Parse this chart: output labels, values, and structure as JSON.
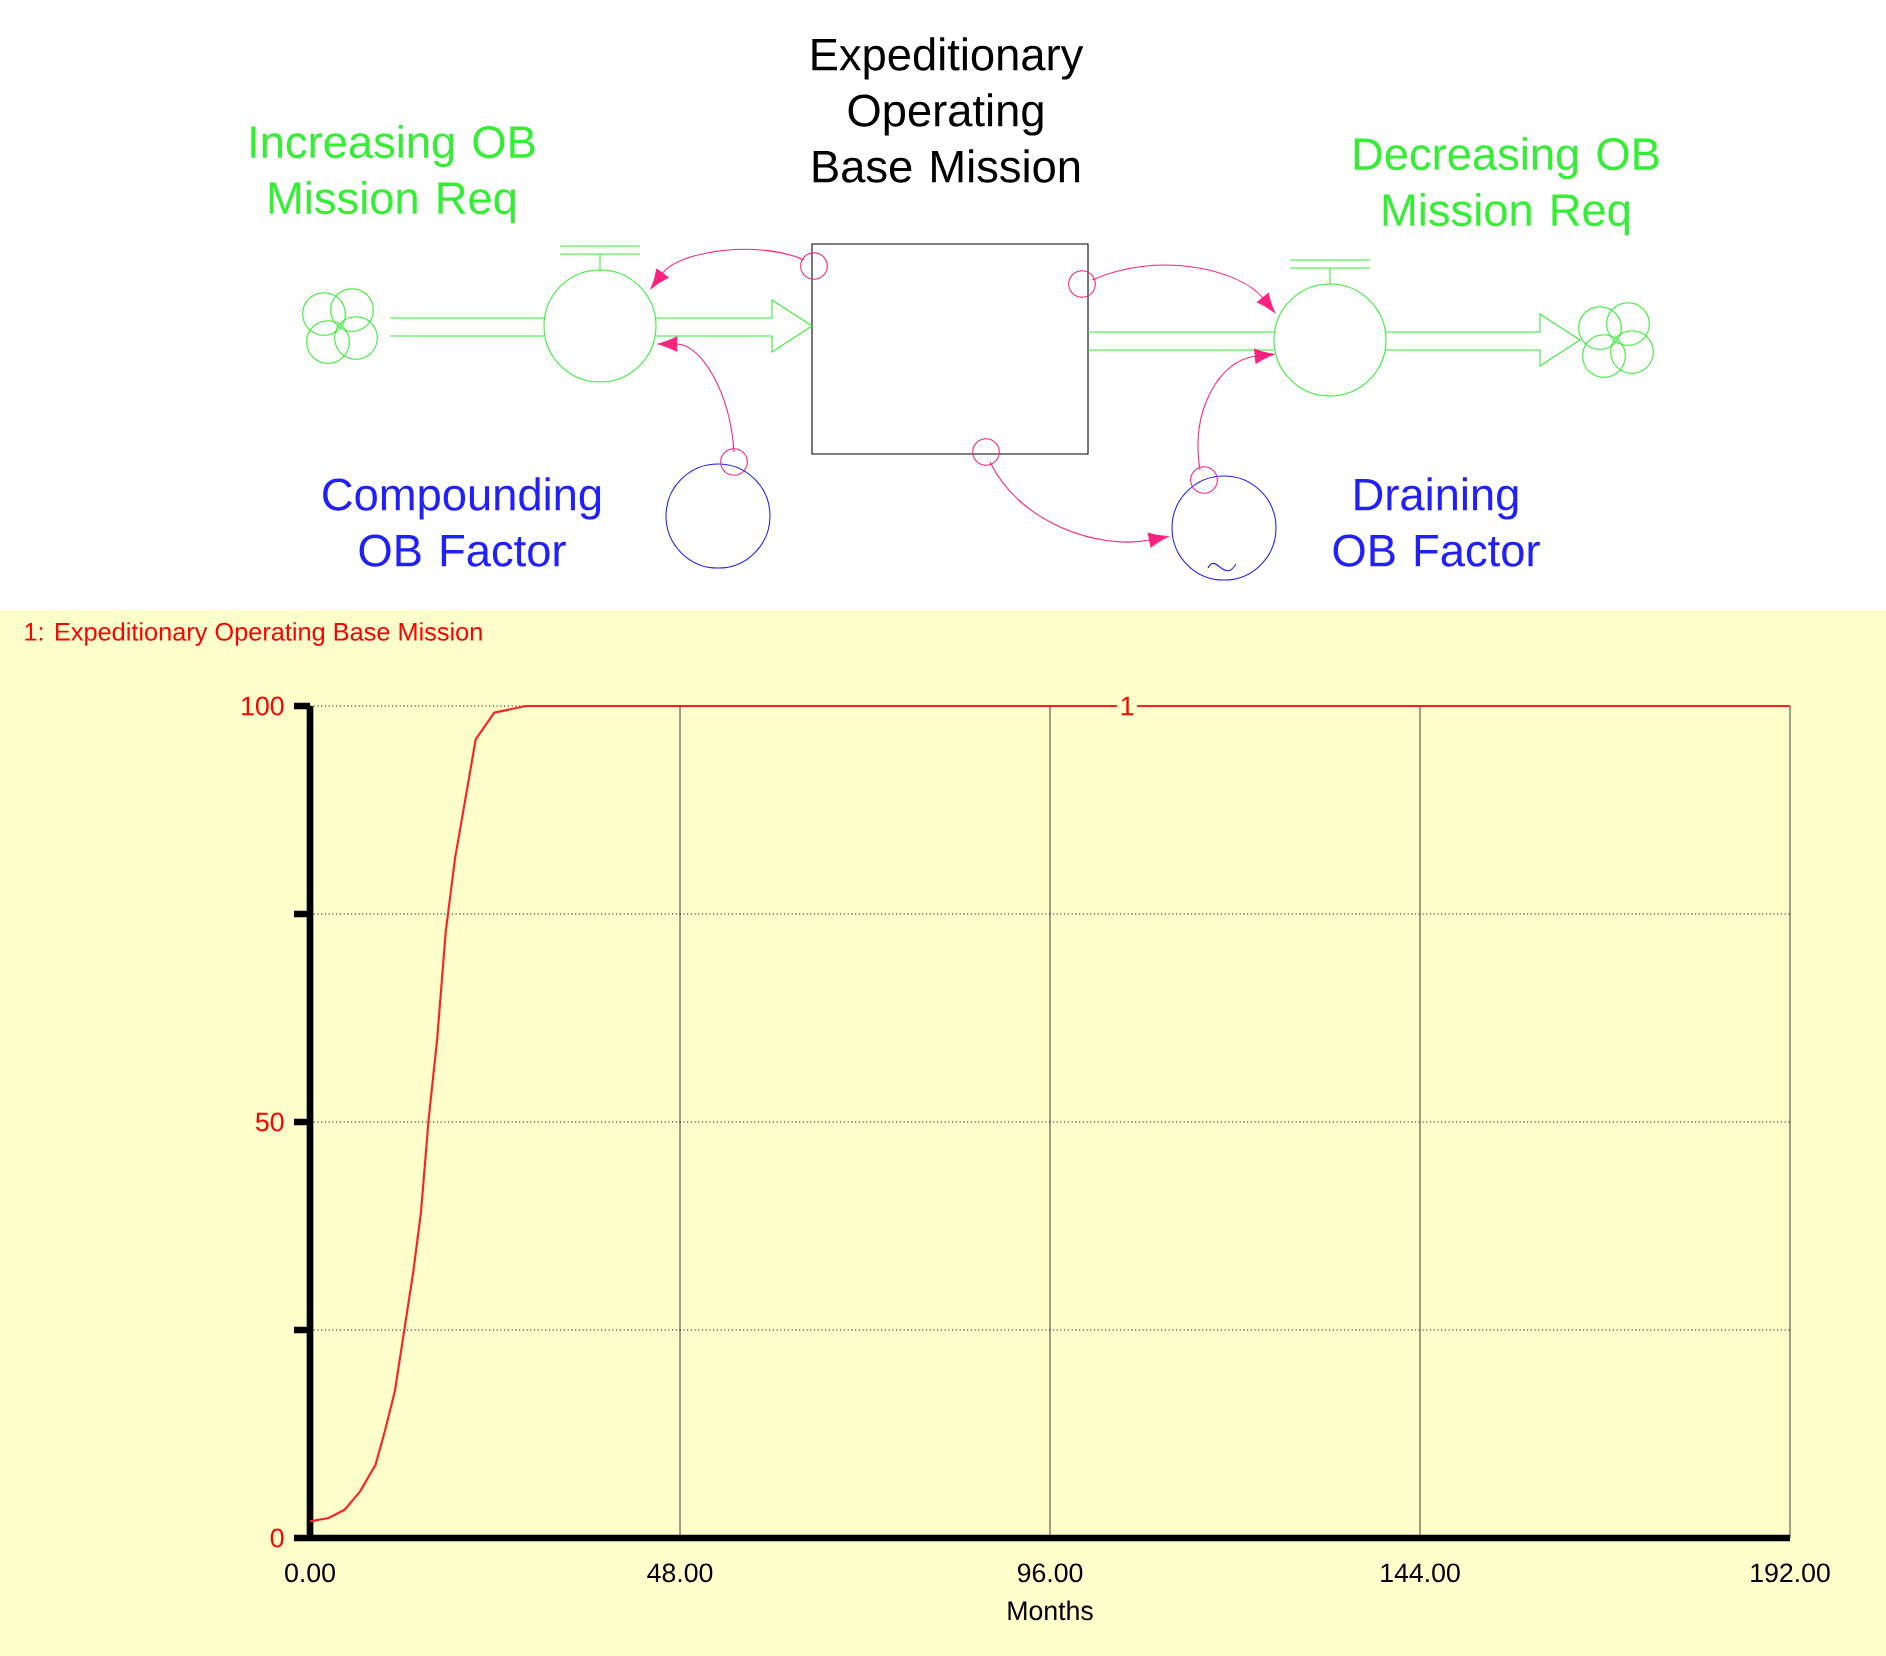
{
  "chart_data": {
    "type": "line",
    "title": "1: Expeditionary  Operating Base Mission",
    "xlabel": "Months",
    "x": [
      0,
      2.4,
      4.5,
      6.5,
      8.5,
      9.7,
      11,
      12.2,
      13.4,
      14.4,
      15.4,
      16.5,
      17.6,
      18.8,
      20,
      21.5,
      23.9,
      28,
      192
    ],
    "series": [
      {
        "color": "#ff2020",
        "values": [
          2,
          2.4,
          3.4,
          5.6,
          8.8,
          12.8,
          17.6,
          24.8,
          32,
          39.2,
          50.4,
          60,
          72.8,
          81.6,
          88,
          96,
          99.2,
          100,
          100
        ]
      }
    ],
    "xlim": [
      0,
      192
    ],
    "ylim": [
      0,
      100
    ],
    "xticks": [
      {
        "value": 0,
        "label": "0.00"
      },
      {
        "value": 48,
        "label": "48.00"
      },
      {
        "value": 96,
        "label": "96.00"
      },
      {
        "value": 144,
        "label": "144.00"
      },
      {
        "value": 192,
        "label": "192.00"
      }
    ],
    "yticks": [
      0,
      {
        "value": 25,
        "label": null
      },
      50,
      {
        "value": 75,
        "label": null
      },
      100
    ],
    "grid": true,
    "annotations": [
      "Expeditionary Operating Base Mission",
      "Increasing OB Mission Req",
      "Decreasing OB Mission Req",
      "Compounding OB Factor",
      "Draining OB Factor",
      {
        "text": "1",
        "x": 106,
        "y": 100
      }
    ]
  }
}
